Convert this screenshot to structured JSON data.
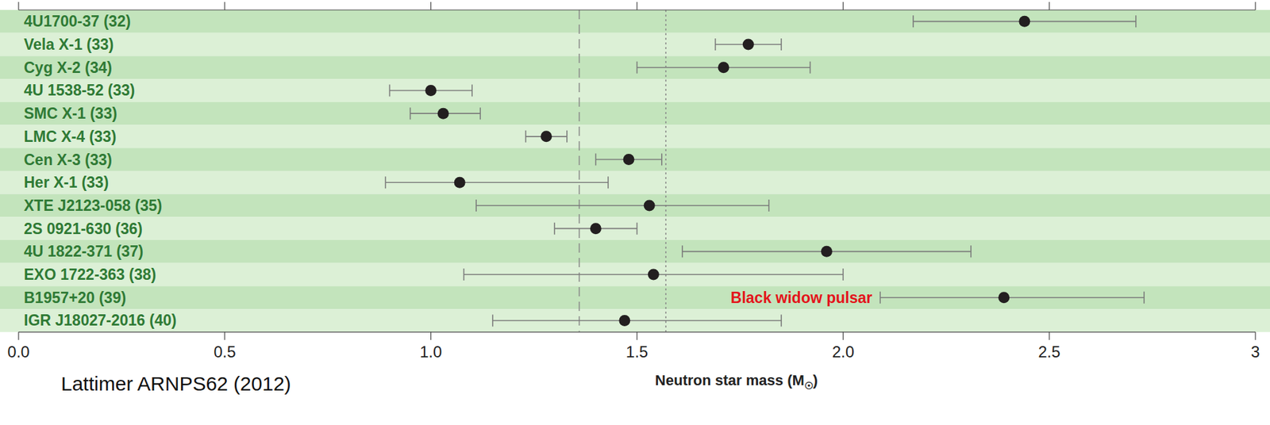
{
  "chart_data": {
    "type": "dot",
    "orientation": "horizontal",
    "x_label": "Neutron star mass (M☉)",
    "source": "Lattimer ARNPS62 (2012)",
    "categories": [
      "4U1700-37 (32)",
      "Vela X-1 (33)",
      "Cyg X-2 (34)",
      "4U 1538-52 (33)",
      "SMC X-1 (33)",
      "LMC X-4 (33)",
      "Cen X-3 (33)",
      "Her X-1 (33)",
      "XTE J2123-058 (35)",
      "2S 0921-630 (36)",
      "4U 1822-371 (37)",
      "EXO 1722-363 (38)",
      "B1957+20 (39)",
      "IGR J18027-2016 (40)"
    ],
    "values": [
      2.44,
      1.77,
      1.71,
      1.0,
      1.03,
      1.28,
      1.48,
      1.07,
      1.53,
      1.4,
      1.96,
      1.54,
      2.39,
      1.47
    ],
    "errors_minus": [
      0.27,
      0.08,
      0.21,
      0.1,
      0.08,
      0.05,
      0.08,
      0.18,
      0.42,
      0.1,
      0.35,
      0.46,
      0.3,
      0.32
    ],
    "errors_plus": [
      0.27,
      0.08,
      0.21,
      0.1,
      0.09,
      0.05,
      0.08,
      0.36,
      0.29,
      0.1,
      0.35,
      0.46,
      0.34,
      0.38
    ],
    "color": "#231f20",
    "xlim": [
      0,
      3
    ],
    "xticks": [
      {
        "value": 0,
        "label": "0.0"
      },
      0.5,
      {
        "value": 1,
        "label": "1.0"
      },
      1.5,
      {
        "value": 2,
        "label": "2.0"
      },
      2.5,
      3
    ],
    "reference_lines": [
      {
        "value": 1.36,
        "line_style": "dashed"
      },
      {
        "value": 1.57,
        "line_style": "dotted"
      }
    ],
    "annotations": [
      {
        "text": "Black widow pulsar",
        "category": "B1957+20 (39)",
        "color": "#e3141b"
      }
    ]
  }
}
